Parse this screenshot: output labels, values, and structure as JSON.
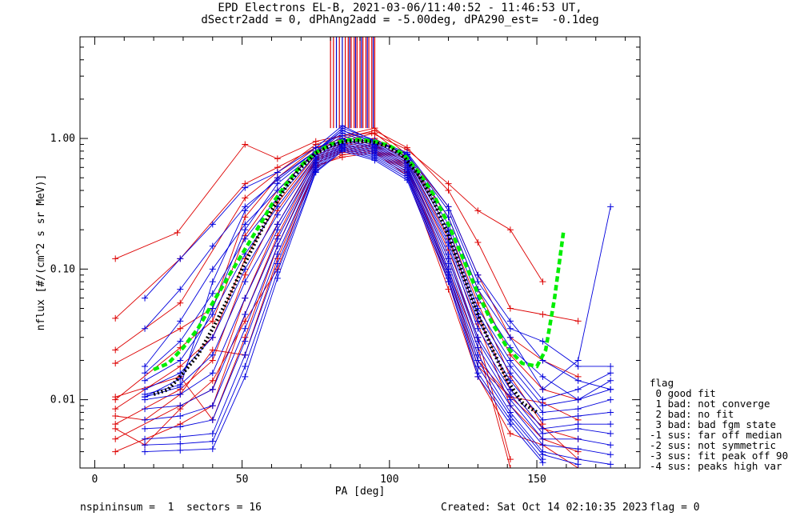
{
  "chart_data": {
    "type": "line",
    "title": "EPD Electrons EL-B, 2021-03-06/11:40:52 - 11:46:53 UT,",
    "subtitle": "dSectr2add = 0, dPhAng2add = -5.00deg, dPA290_est=  -0.1deg",
    "xlabel": "PA [deg]",
    "ylabel": "nflux [#/(cm^2 s sr MeV)]",
    "xlim": [
      -5,
      185
    ],
    "ylim": [
      0.003,
      6
    ],
    "y_scale": "log",
    "x_ticks": [
      "0",
      "50",
      "100",
      "150"
    ],
    "y_ticks": [
      "0.01",
      "0.10",
      "1.00"
    ],
    "grid": false,
    "series": [
      {
        "color": "#dd0000",
        "marker": "+",
        "x": [
          7,
          28,
          51,
          62,
          75,
          84,
          94,
          106,
          120,
          130,
          141,
          152
        ],
        "y": [
          0.12,
          0.19,
          0.9,
          0.7,
          0.95,
          1.05,
          1.1,
          0.82,
          0.45,
          0.28,
          0.2,
          0.08
        ]
      },
      {
        "color": "#dd0000",
        "marker": "+",
        "x": [
          7,
          29,
          51,
          62,
          75,
          84,
          95,
          106,
          120,
          130,
          141,
          152,
          164
        ],
        "y": [
          0.042,
          0.12,
          0.45,
          0.6,
          0.85,
          1.0,
          1.15,
          0.85,
          0.4,
          0.16,
          0.05,
          0.045,
          0.04
        ]
      },
      {
        "color": "#dd0000",
        "marker": "+",
        "x": [
          7,
          29,
          51,
          62,
          75,
          84,
          95,
          106,
          120,
          130,
          141,
          152,
          164
        ],
        "y": [
          0.024,
          0.055,
          0.35,
          0.55,
          0.9,
          1.05,
          1.2,
          0.75,
          0.3,
          0.09,
          0.03,
          0.02,
          0.015
        ]
      },
      {
        "color": "#dd0000",
        "marker": "+",
        "x": [
          7,
          29,
          40,
          51,
          62,
          75,
          84,
          95,
          106,
          120,
          130,
          141,
          152,
          164
        ],
        "y": [
          0.019,
          0.035,
          0.05,
          0.25,
          0.5,
          0.85,
          0.95,
          1.1,
          0.7,
          0.25,
          0.07,
          0.022,
          0.012,
          0.01
        ]
      },
      {
        "color": "#dd0000",
        "marker": "+",
        "x": [
          7,
          29,
          40,
          51,
          62,
          75,
          84,
          95,
          106,
          120,
          130,
          141,
          152
        ],
        "y": [
          0.01,
          0.025,
          0.04,
          0.18,
          0.4,
          0.8,
          0.9,
          1.0,
          0.72,
          0.2,
          0.055,
          0.015,
          0.0065
        ]
      },
      {
        "color": "#dd0000",
        "marker": "+",
        "x": [
          7,
          29,
          40,
          51,
          62,
          75,
          84,
          95,
          106,
          120,
          130,
          141,
          152,
          164
        ],
        "y": [
          0.0085,
          0.018,
          0.03,
          0.12,
          0.32,
          0.75,
          0.88,
          0.95,
          0.68,
          0.17,
          0.045,
          0.012,
          0.006,
          0.005
        ]
      },
      {
        "color": "#dd0000",
        "marker": "+",
        "x": [
          7,
          29,
          40,
          51,
          62,
          75,
          84,
          95,
          106,
          120,
          130,
          141,
          152,
          164
        ],
        "y": [
          0.0065,
          0.012,
          0.02,
          0.09,
          0.28,
          0.72,
          0.85,
          0.9,
          0.65,
          0.14,
          0.038,
          0.009,
          0.005,
          0.004
        ]
      },
      {
        "color": "#dd0000",
        "marker": "+",
        "x": [
          7,
          29,
          40,
          51,
          62,
          75,
          84,
          95,
          106,
          120,
          130,
          141
        ],
        "y": [
          0.005,
          0.009,
          0.012,
          0.06,
          0.22,
          0.7,
          0.82,
          0.88,
          0.62,
          0.12,
          0.03,
          0.0035
        ]
      },
      {
        "color": "#dd0000",
        "marker": "+",
        "x": [
          7,
          29,
          40,
          51,
          62,
          75,
          84,
          95,
          106,
          120,
          130,
          141
        ],
        "y": [
          0.004,
          0.0065,
          0.009,
          0.045,
          0.18,
          0.68,
          0.8,
          0.85,
          0.6,
          0.1,
          0.025,
          0.003
        ]
      },
      {
        "color": "#dd0000",
        "marker": "+",
        "x": [
          7,
          29,
          40,
          51,
          62,
          75,
          84,
          95,
          106,
          120,
          130,
          141,
          164
        ],
        "y": [
          0.0105,
          0.015,
          0.007,
          0.03,
          0.15,
          0.65,
          0.78,
          0.82,
          0.58,
          0.09,
          0.02,
          0.0105,
          0.0035
        ]
      },
      {
        "color": "#dd0000",
        "marker": "+",
        "x": [
          7,
          17,
          29,
          40,
          51,
          62,
          75,
          84,
          95,
          106,
          120,
          130,
          141,
          152,
          164
        ],
        "y": [
          0.0075,
          0.007,
          0.011,
          0.024,
          0.022,
          0.12,
          0.6,
          0.75,
          0.8,
          0.55,
          0.08,
          0.018,
          0.0105,
          0.0095,
          0.007
        ]
      },
      {
        "color": "#dd0000",
        "marker": "+",
        "x": [
          7,
          17,
          29,
          40,
          51,
          62,
          75,
          84,
          95,
          106,
          120,
          130,
          141,
          152,
          164
        ],
        "y": [
          0.006,
          0.0045,
          0.0085,
          0.014,
          0.04,
          0.1,
          0.62,
          0.72,
          0.78,
          0.52,
          0.07,
          0.015,
          0.0055,
          0.0045,
          0.003
        ]
      },
      {
        "color": "#0000dd",
        "marker": "+",
        "x": [
          17,
          29,
          40,
          51,
          62,
          75,
          84,
          95,
          106,
          120,
          130,
          141,
          152,
          164,
          175
        ],
        "y": [
          0.06,
          0.12,
          0.22,
          0.42,
          0.55,
          0.85,
          1.25,
          0.95,
          0.75,
          0.25,
          0.07,
          0.03,
          0.012,
          0.02,
          0.3
        ]
      },
      {
        "color": "#0000dd",
        "marker": "+",
        "x": [
          17,
          29,
          40,
          51,
          62,
          75,
          84,
          95,
          106,
          120,
          130,
          141,
          152,
          164,
          175
        ],
        "y": [
          0.035,
          0.07,
          0.15,
          0.3,
          0.48,
          0.8,
          1.15,
          0.92,
          0.72,
          0.22,
          0.06,
          0.025,
          0.015,
          0.01,
          0.014
        ]
      },
      {
        "color": "#0000dd",
        "marker": "+",
        "x": [
          17,
          29,
          40,
          51,
          62,
          75,
          84,
          95,
          106,
          120,
          130,
          141,
          152,
          164,
          175
        ],
        "y": [
          0.018,
          0.04,
          0.1,
          0.22,
          0.4,
          0.78,
          1.1,
          0.9,
          0.7,
          0.2,
          0.05,
          0.02,
          0.01,
          0.012,
          0.016
        ]
      },
      {
        "color": "#0000dd",
        "marker": "+",
        "x": [
          17,
          29,
          40,
          51,
          62,
          75,
          84,
          95,
          106,
          120,
          130,
          141,
          152,
          164,
          175
        ],
        "y": [
          0.016,
          0.028,
          0.065,
          0.17,
          0.35,
          0.75,
          1.05,
          0.88,
          0.68,
          0.18,
          0.045,
          0.018,
          0.009,
          0.01,
          0.012
        ]
      },
      {
        "color": "#0000dd",
        "marker": "+",
        "x": [
          17,
          29,
          40,
          51,
          62,
          75,
          84,
          95,
          106,
          120,
          130,
          141,
          152,
          164,
          175
        ],
        "y": [
          0.014,
          0.02,
          0.045,
          0.13,
          0.3,
          0.72,
          1.0,
          0.86,
          0.66,
          0.16,
          0.04,
          0.016,
          0.008,
          0.0085,
          0.01
        ]
      },
      {
        "color": "#0000dd",
        "marker": "+",
        "x": [
          17,
          29,
          40,
          51,
          62,
          75,
          84,
          95,
          106,
          120,
          130,
          141,
          152,
          164,
          175
        ],
        "y": [
          0.012,
          0.016,
          0.03,
          0.1,
          0.26,
          0.7,
          0.98,
          0.84,
          0.64,
          0.15,
          0.035,
          0.014,
          0.007,
          0.0075,
          0.008
        ]
      },
      {
        "color": "#0000dd",
        "marker": "+",
        "x": [
          17,
          29,
          40,
          51,
          62,
          75,
          84,
          95,
          106,
          120,
          130,
          141,
          152,
          164,
          175
        ],
        "y": [
          0.011,
          0.013,
          0.022,
          0.08,
          0.22,
          0.68,
          0.95,
          0.82,
          0.62,
          0.13,
          0.03,
          0.012,
          0.006,
          0.0065,
          0.0065
        ]
      },
      {
        "color": "#0000dd",
        "marker": "+",
        "x": [
          17,
          29,
          40,
          51,
          62,
          75,
          84,
          95,
          106,
          120,
          130,
          141,
          152,
          164,
          175
        ],
        "y": [
          0.01,
          0.011,
          0.016,
          0.06,
          0.2,
          0.66,
          0.92,
          0.8,
          0.6,
          0.12,
          0.028,
          0.011,
          0.0055,
          0.006,
          0.0055
        ]
      },
      {
        "color": "#0000dd",
        "marker": "+",
        "x": [
          17,
          29,
          40,
          51,
          62,
          75,
          84,
          95,
          106,
          120,
          130,
          141,
          152,
          164,
          175
        ],
        "y": [
          0.0085,
          0.009,
          0.012,
          0.045,
          0.17,
          0.64,
          0.9,
          0.78,
          0.58,
          0.11,
          0.025,
          0.01,
          0.005,
          0.005,
          0.0045
        ]
      },
      {
        "color": "#0000dd",
        "marker": "+",
        "x": [
          17,
          29,
          40,
          51,
          62,
          75,
          84,
          95,
          106,
          120,
          130,
          141,
          152,
          164,
          175
        ],
        "y": [
          0.007,
          0.0075,
          0.009,
          0.035,
          0.15,
          0.62,
          0.88,
          0.76,
          0.56,
          0.1,
          0.022,
          0.009,
          0.0045,
          0.0042,
          0.0038
        ]
      },
      {
        "color": "#0000dd",
        "marker": "+",
        "x": [
          17,
          29,
          40,
          51,
          62,
          75,
          84,
          95,
          106,
          120,
          130,
          141,
          152,
          164,
          175
        ],
        "y": [
          0.006,
          0.0062,
          0.007,
          0.028,
          0.13,
          0.6,
          0.86,
          0.74,
          0.54,
          0.095,
          0.02,
          0.008,
          0.004,
          0.0035,
          0.0032
        ]
      },
      {
        "color": "#0000dd",
        "marker": "+",
        "x": [
          17,
          29,
          40,
          51,
          62,
          75,
          84,
          95,
          106,
          120,
          130,
          141,
          152,
          164
        ],
        "y": [
          0.005,
          0.0052,
          0.0055,
          0.022,
          0.11,
          0.58,
          0.84,
          0.72,
          0.52,
          0.09,
          0.018,
          0.0075,
          0.0038,
          0.0032
        ]
      },
      {
        "color": "#0000dd",
        "marker": "+",
        "x": [
          17,
          29,
          40,
          51,
          62,
          75,
          84,
          95,
          106,
          120,
          130,
          141,
          152
        ],
        "y": [
          0.0045,
          0.0046,
          0.0048,
          0.018,
          0.095,
          0.56,
          0.82,
          0.7,
          0.5,
          0.085,
          0.016,
          0.007,
          0.0035
        ]
      },
      {
        "color": "#0000dd",
        "marker": "+",
        "x": [
          17,
          29,
          40,
          51,
          62,
          75,
          84,
          95,
          106,
          120,
          130,
          141,
          152
        ],
        "y": [
          0.004,
          0.0041,
          0.0042,
          0.015,
          0.085,
          0.55,
          0.8,
          0.68,
          0.48,
          0.08,
          0.015,
          0.0065,
          0.0033
        ]
      },
      {
        "color": "#0000dd",
        "marker": "+",
        "x": [
          17,
          29,
          40,
          51,
          62,
          75,
          84,
          95,
          106,
          120,
          130,
          141,
          152,
          164,
          175
        ],
        "y": [
          0.0105,
          0.0145,
          0.05,
          0.2,
          0.45,
          0.78,
          1.15,
          0.95,
          0.76,
          0.28,
          0.08,
          0.035,
          0.028,
          0.018,
          0.018
        ]
      },
      {
        "color": "#0000dd",
        "marker": "+",
        "x": [
          17,
          29,
          40,
          51,
          62,
          75,
          84,
          95,
          106,
          120,
          130,
          141,
          152,
          164,
          175
        ],
        "y": [
          0.0105,
          0.0125,
          0.08,
          0.28,
          0.5,
          0.8,
          1.2,
          0.97,
          0.78,
          0.3,
          0.09,
          0.04,
          0.02,
          0.014,
          0.012
        ]
      }
    ],
    "fit_curves": [
      {
        "color": "#00ee00",
        "style": "dashed",
        "x": [
          20,
          25,
          30,
          35,
          40,
          45,
          50,
          55,
          60,
          65,
          70,
          75,
          80,
          85,
          90,
          95,
          100,
          105,
          110,
          115,
          120,
          125,
          130,
          135,
          140,
          145,
          150,
          153,
          156,
          159
        ],
        "y": [
          0.017,
          0.019,
          0.025,
          0.035,
          0.055,
          0.085,
          0.13,
          0.2,
          0.31,
          0.45,
          0.62,
          0.78,
          0.9,
          0.97,
          0.98,
          0.95,
          0.88,
          0.75,
          0.55,
          0.37,
          0.22,
          0.12,
          0.065,
          0.038,
          0.025,
          0.019,
          0.018,
          0.024,
          0.06,
          0.19
        ]
      },
      {
        "color": "#000000",
        "style": "dotted",
        "x": [
          20,
          25,
          30,
          35,
          40,
          45,
          50,
          55,
          60,
          65,
          70,
          75,
          80,
          85,
          90,
          95,
          100,
          105,
          110,
          115,
          120,
          125,
          130,
          135,
          140,
          145,
          150
        ],
        "y": [
          0.011,
          0.012,
          0.016,
          0.022,
          0.035,
          0.058,
          0.1,
          0.17,
          0.28,
          0.43,
          0.6,
          0.77,
          0.88,
          0.95,
          0.96,
          0.93,
          0.86,
          0.72,
          0.52,
          0.33,
          0.18,
          0.09,
          0.045,
          0.024,
          0.014,
          0.0095,
          0.008
        ]
      }
    ],
    "vertical_bars": {
      "red_x": [
        80,
        81,
        83,
        85,
        86,
        87,
        88,
        89,
        90,
        91,
        92,
        93,
        94,
        95
      ],
      "blue_x": [
        82,
        84,
        86.5,
        88.5,
        90.5,
        92.5,
        94.5
      ],
      "y_from": 1.2,
      "y_to": 6
    }
  },
  "footer": {
    "left": "nspininsum =  1  sectors = 16",
    "created": "Created: Sat Oct 14 02:10:35 2023",
    "flag": "flag = 0"
  },
  "flag_legend": [
    "flag",
    " 0 good fit",
    " 1 bad: not converge",
    " 2 bad: no fit",
    " 3 bad: bad fgm state",
    "-1 sus: far off median",
    "-2 sus: not symmetric",
    "-3 sus: fit peak off 90",
    "-4 sus: peaks high var"
  ]
}
